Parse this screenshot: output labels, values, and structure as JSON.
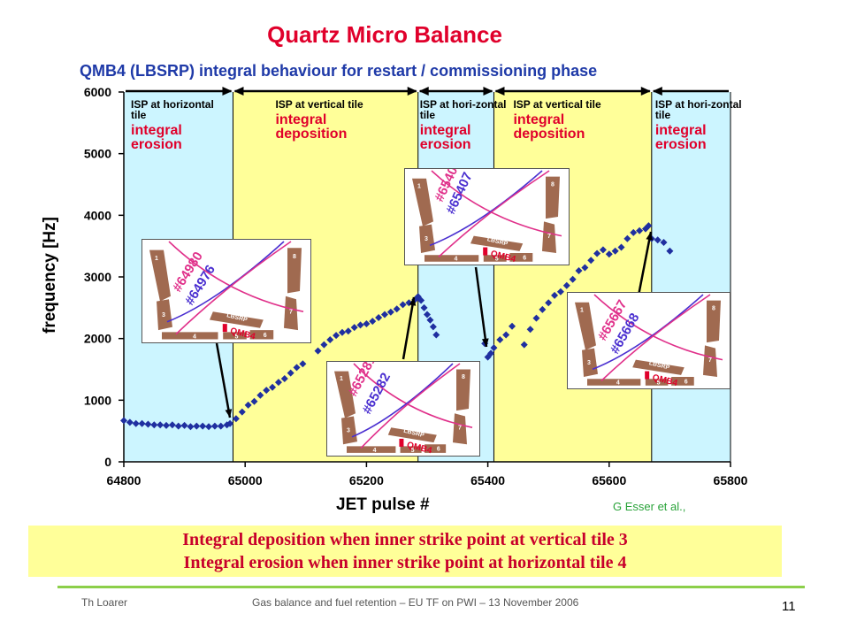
{
  "title": "Quartz Micro Balance",
  "subtitle": "QMB4 (LBSRP) integral behaviour for restart / commissioning phase",
  "credit": "G Esser et al.,",
  "caption": {
    "line1": "Integral deposition when inner strike point at vertical tile 3",
    "line2": "Integral erosion when inner strike point at horizontal tile 4"
  },
  "footer": {
    "author": "Th Loarer",
    "conference": "Gas balance and fuel retention – EU TF on PWI – 13 November 2006",
    "page": "11"
  },
  "phases": [
    {
      "isp": "ISP at horizontal tile",
      "effect": "integral erosion",
      "start": 64800,
      "end": 64980,
      "color": "#ccf5ff"
    },
    {
      "isp": "ISP at vertical tile",
      "effect": "integral deposition",
      "start": 64980,
      "end": 65285,
      "color": "#ffff99"
    },
    {
      "isp": "ISP at hori-zontal tile",
      "effect": "integral erosion",
      "start": 65285,
      "end": 65410,
      "color": "#ccf5ff"
    },
    {
      "isp": "ISP at vertical tile",
      "effect": "integral deposition",
      "start": 65410,
      "end": 65670,
      "color": "#ffff99"
    },
    {
      "isp": "ISP at hori-zontal tile",
      "effect": "integral erosion",
      "start": 65670,
      "end": 65800,
      "color": "#ccf5ff"
    }
  ],
  "insets": [
    {
      "pulse_a": "#64980",
      "pulse_b": "#64976",
      "tiles": [
        "1",
        "8",
        "3",
        "7",
        "4",
        "5",
        "6"
      ],
      "diag": "LBSRP",
      "sensor": "QMB4"
    },
    {
      "pulse_a": "#65281",
      "pulse_b": "#65282",
      "tiles": [
        "1",
        "8",
        "3",
        "7",
        "4",
        "5",
        "6"
      ],
      "diag": "LBSRP",
      "sensor": "QMB4"
    },
    {
      "pulse_a": "#65409",
      "pulse_b": "#65407",
      "tiles": [
        "1",
        "8",
        "3",
        "7",
        "4",
        "5",
        "6"
      ],
      "diag": "LBSRP",
      "sensor": "QMB4"
    },
    {
      "pulse_a": "#65667",
      "pulse_b": "#65668",
      "tiles": [
        "1",
        "8",
        "3",
        "7",
        "4",
        "5",
        "6"
      ],
      "diag": "LBSRP",
      "sensor": "QMB4"
    }
  ],
  "colors": {
    "series": "#1f2fa0",
    "erosion_bg": "#ccf5ff",
    "deposition_bg": "#ffff99",
    "accent": "#e0002b",
    "pulse_a": "#e0308a",
    "pulse_b": "#4a2fd0"
  },
  "chart_data": {
    "type": "scatter",
    "xlabel": "JET pulse #",
    "ylabel": "frequency [Hz]",
    "xlim": [
      64800,
      65800
    ],
    "ylim": [
      0,
      6000
    ],
    "xticks": [
      64800,
      65000,
      65200,
      65400,
      65600,
      65800
    ],
    "yticks": [
      0,
      1000,
      2000,
      3000,
      4000,
      5000,
      6000
    ],
    "series": [
      {
        "marker": "diamond",
        "x": [
          64800,
          64810,
          64820,
          64830,
          64840,
          64850,
          64860,
          64870,
          64880,
          64890,
          64900,
          64910,
          64920,
          64930,
          64940,
          64950,
          64960,
          64970,
          64975,
          64985,
          64995,
          65005,
          65015,
          65025,
          65035,
          65045,
          65055,
          65065,
          65075,
          65085,
          65095,
          65120,
          65130,
          65140,
          65150,
          65160,
          65170,
          65180,
          65190,
          65200,
          65210,
          65220,
          65230,
          65240,
          65250,
          65260,
          65270,
          65280,
          65285,
          65290,
          65295,
          65300,
          65305,
          65310,
          65315,
          65395,
          65400,
          65405,
          65410,
          65420,
          65430,
          65440,
          65460,
          65470,
          65480,
          65490,
          65500,
          65510,
          65520,
          65530,
          65540,
          65550,
          65560,
          65570,
          65580,
          65590,
          65600,
          65610,
          65620,
          65630,
          65640,
          65650,
          65660,
          65665,
          65670,
          65680,
          65690,
          65700
        ],
        "y": [
          670,
          640,
          620,
          620,
          610,
          600,
          600,
          590,
          600,
          580,
          590,
          570,
          580,
          580,
          570,
          580,
          580,
          600,
          620,
          700,
          810,
          920,
          980,
          1080,
          1160,
          1210,
          1290,
          1350,
          1440,
          1530,
          1590,
          1800,
          1900,
          1980,
          2050,
          2100,
          2120,
          2180,
          2220,
          2240,
          2280,
          2340,
          2390,
          2430,
          2480,
          2550,
          2580,
          2630,
          2680,
          2620,
          2500,
          2390,
          2300,
          2190,
          2060,
          1920,
          1700,
          1760,
          1850,
          1980,
          2060,
          2200,
          1900,
          2150,
          2330,
          2470,
          2580,
          2700,
          2760,
          2860,
          2960,
          3100,
          3150,
          3270,
          3380,
          3440,
          3370,
          3420,
          3480,
          3620,
          3720,
          3750,
          3780,
          3830,
          3620,
          3600,
          3560,
          3420
        ]
      }
    ]
  }
}
